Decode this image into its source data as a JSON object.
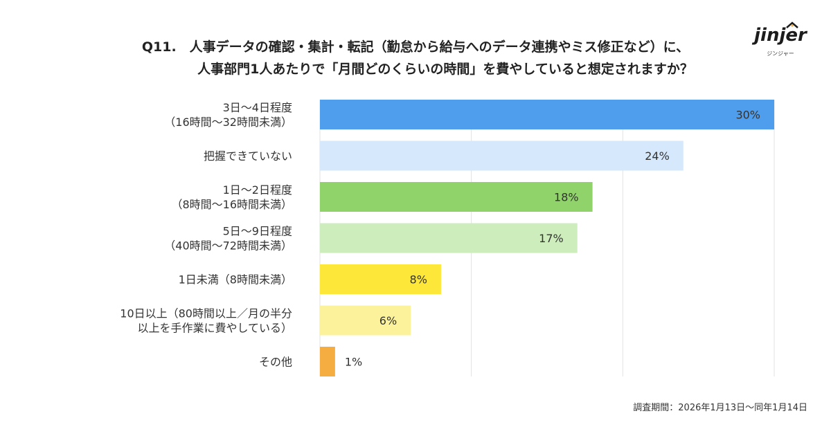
{
  "title": {
    "line1": "Q11.　人事データの確認・集計・転記（勤怠から給与へのデータ連携やミス修正など）に、",
    "line2": "人事部門1人あたりで「月間どのくらいの時間」を費やしていると想定されますか？"
  },
  "logo": {
    "word": "jinjer",
    "kana": "ジンジャー"
  },
  "note": "調査期間：2026年1月13日〜同年1月14日",
  "chart_data": {
    "type": "bar",
    "orientation": "horizontal",
    "xlim": [
      0,
      30
    ],
    "grid": true,
    "categories": [
      [
        "3日〜4日程度",
        "（16時間〜32時間未満）"
      ],
      [
        "把握できていない"
      ],
      [
        "1日〜2日程度",
        "（8時間〜16時間未満）"
      ],
      [
        "5日〜9日程度",
        "（40時間〜72時間未満）"
      ],
      [
        "1日未満（8時間未満）"
      ],
      [
        "10日以上（80時間以上／月の半分",
        "以上を手作業に費やしている）"
      ],
      [
        "その他"
      ]
    ],
    "values": [
      30,
      24,
      18,
      17,
      8,
      6,
      1
    ],
    "labels": [
      "30%",
      "24%",
      "18%",
      "17%",
      "8%",
      "6%",
      "1%"
    ],
    "colors": [
      "#4f9ded",
      "#d6e8fb",
      "#8fd36a",
      "#cdeebc",
      "#fde83a",
      "#fdf29c",
      "#f5ac41"
    ]
  }
}
